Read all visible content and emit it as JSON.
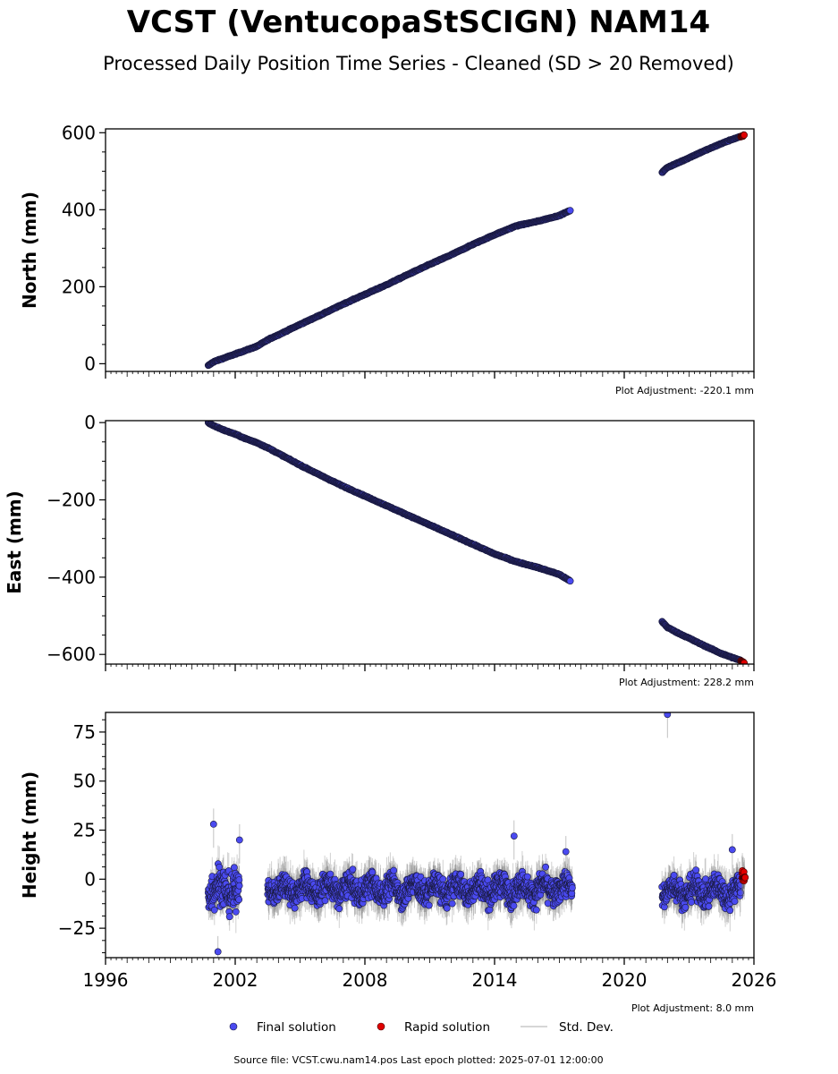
{
  "figure": {
    "title": "VCST (VentucopaStSCIGN) NAM14",
    "subtitle": "Processed Daily Position Time Series - Cleaned (SD > 20 Removed)",
    "source_note": "Source file: VCST.cwu.nam14.pos  Last epoch plotted: 2025-07-01 12:00:00",
    "colors": {
      "final": "#4a4af0",
      "rapid": "#e00000",
      "stddev": "#b0b0b0",
      "edge": "#1a1a40"
    }
  },
  "legend": {
    "final_label": "Final solution",
    "rapid_label": "Rapid solution",
    "stddev_label": "Std. Dev."
  },
  "chart_data": [
    {
      "type": "scatter",
      "panel": "north",
      "ylabel": "North (mm)",
      "adjustment": "Plot Adjustment: -220.1 mm",
      "xlim": [
        1996,
        2026
      ],
      "ylim": [
        -20,
        610
      ],
      "yticks": [
        0,
        200,
        400,
        600
      ],
      "ytick_labels": [
        "0",
        "200",
        "400",
        "600"
      ],
      "series": [
        {
          "name": "Final solution",
          "segments": [
            {
              "x": [
                2000.75,
                2001.0,
                2001.5,
                2002.0,
                2002.5,
                2003.0,
                2003.6,
                2004.0,
                2005.0,
                2006.0,
                2007.0,
                2008.0,
                2009.0,
                2010.0,
                2011.0,
                2012.0,
                2013.0,
                2014.0,
                2015.0,
                2016.0,
                2017.0,
                2017.5
              ],
              "y": [
                -5,
                5,
                15,
                25,
                35,
                45,
                65,
                75,
                102,
                128,
                155,
                180,
                205,
                232,
                258,
                283,
                310,
                335,
                358,
                370,
                385,
                398
              ]
            },
            {
              "x": [
                2021.75,
                2022.0,
                2022.5,
                2023.0,
                2023.5,
                2024.0,
                2024.5,
                2025.0,
                2025.4
              ],
              "y": [
                497,
                510,
                522,
                535,
                548,
                560,
                572,
                583,
                590
              ]
            }
          ]
        },
        {
          "name": "Rapid solution",
          "segments": [
            {
              "x": [
                2025.4,
                2025.5,
                2025.55
              ],
              "y": [
                590,
                592,
                594
              ]
            }
          ]
        }
      ]
    },
    {
      "type": "scatter",
      "panel": "east",
      "ylabel": "East (mm)",
      "adjustment": "Plot Adjustment: 228.2 mm",
      "xlim": [
        1996,
        2026
      ],
      "ylim": [
        -625,
        5
      ],
      "yticks": [
        0,
        -200,
        -400,
        -600
      ],
      "ytick_labels": [
        "0",
        "−200",
        "−400",
        "−600"
      ],
      "series": [
        {
          "name": "Final solution",
          "segments": [
            {
              "x": [
                2000.75,
                2001.0,
                2001.5,
                2002.0,
                2002.5,
                2003.0,
                2003.6,
                2004.0,
                2005.0,
                2006.0,
                2007.0,
                2008.0,
                2009.0,
                2010.0,
                2011.0,
                2012.0,
                2013.0,
                2014.0,
                2015.0,
                2016.0,
                2017.0,
                2017.5
              ],
              "y": [
                0,
                -8,
                -20,
                -30,
                -42,
                -52,
                -68,
                -80,
                -110,
                -138,
                -165,
                -190,
                -215,
                -240,
                -265,
                -290,
                -315,
                -340,
                -360,
                -375,
                -393,
                -410
              ]
            },
            {
              "x": [
                2021.75,
                2022.0,
                2022.5,
                2023.0,
                2023.5,
                2024.0,
                2024.5,
                2025.0,
                2025.4
              ],
              "y": [
                -515,
                -530,
                -545,
                -558,
                -572,
                -585,
                -598,
                -608,
                -616
              ]
            }
          ]
        },
        {
          "name": "Rapid solution",
          "segments": [
            {
              "x": [
                2025.4,
                2025.5,
                2025.55
              ],
              "y": [
                -617,
                -620,
                -622
              ]
            }
          ]
        }
      ]
    },
    {
      "type": "scatter",
      "panel": "height",
      "ylabel": "Height (mm)",
      "adjustment": "Plot Adjustment: 8.0 mm",
      "xlim": [
        1996,
        2026
      ],
      "ylim": [
        -40,
        85
      ],
      "yticks": [
        -25,
        0,
        25,
        50,
        75
      ],
      "ytick_labels": [
        "−25",
        "0",
        "25",
        "50",
        "75"
      ],
      "xticks": [
        1996,
        2002,
        2008,
        2014,
        2020,
        2026
      ],
      "xtick_labels": [
        "1996",
        "2002",
        "2008",
        "2014",
        "2020",
        "2026"
      ],
      "series": [
        {
          "name": "Final solution",
          "segments": [
            {
              "x_range": [
                2000.75,
                2002.2
              ],
              "center": -5,
              "spread": 14
            },
            {
              "x_range": [
                2003.5,
                2017.6
              ],
              "center": -5,
              "spread": 9
            },
            {
              "x_range": [
                2021.75,
                2025.4
              ],
              "center": -6,
              "spread": 9
            }
          ],
          "notable_points": [
            {
              "x": 2001.0,
              "y": 28
            },
            {
              "x": 2002.2,
              "y": 20
            },
            {
              "x": 2001.2,
              "y": -37
            },
            {
              "x": 2014.9,
              "y": 22
            },
            {
              "x": 2017.3,
              "y": 14
            },
            {
              "x": 2022.0,
              "y": 84
            },
            {
              "x": 2025.0,
              "y": 15
            }
          ]
        },
        {
          "name": "Rapid solution",
          "segments": [
            {
              "x_range": [
                2025.45,
                2025.6
              ],
              "center": 2,
              "spread": 4
            }
          ]
        }
      ]
    }
  ]
}
